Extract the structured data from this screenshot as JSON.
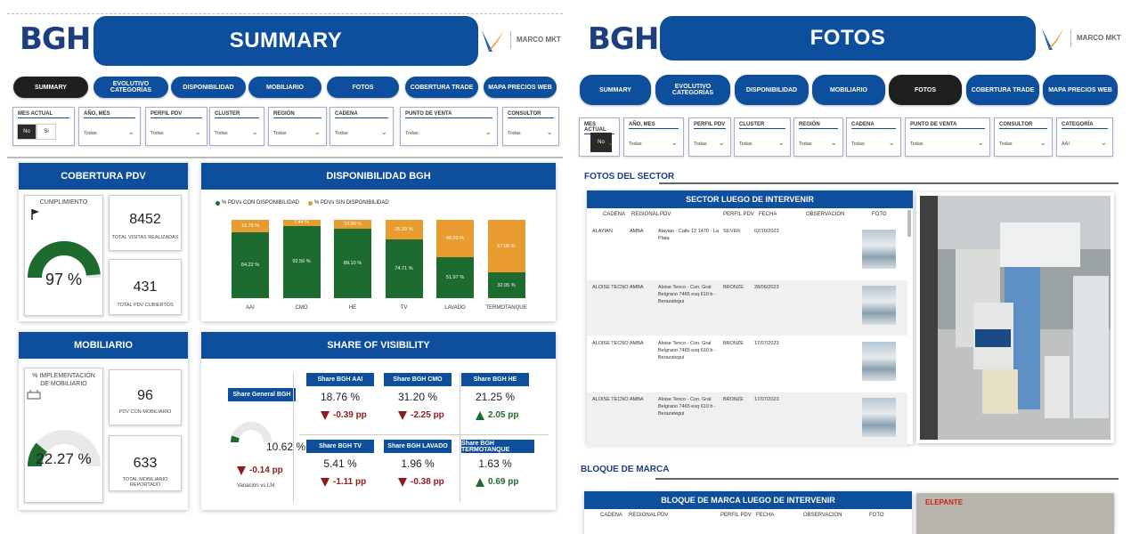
{
  "brand": {
    "logo": "BGH",
    "partner": "MARCO MKT",
    "accent": "#0d4f9c",
    "green": "#1d6b2f",
    "orange": "#e89c2f",
    "red": "#8b1c1c"
  },
  "summary": {
    "title": "SUMMARY",
    "nav": [
      "SUMMARY",
      "EVOLUTIVO CATEGORÍAS",
      "DISPONIBILIDAD",
      "MOBILIARIO",
      "FOTOS",
      "COBERTURA TRADE",
      "MAPA PRECIOS WEB"
    ],
    "active_tab": "SUMMARY",
    "filters": [
      {
        "label": "MES ACTUAL",
        "options": [
          "No",
          "Si"
        ],
        "selected": "No"
      },
      {
        "label": "AÑO, MES",
        "value": "Todas"
      },
      {
        "label": "PERFIL PDV",
        "value": "Todas"
      },
      {
        "label": "CLUSTER",
        "value": "Todas"
      },
      {
        "label": "REGIÓN",
        "value": "Todas"
      },
      {
        "label": "CADENA",
        "value": "Todas"
      },
      {
        "label": "PUNTO DE VENTA",
        "value": "Todas"
      },
      {
        "label": "CONSULTOR",
        "value": "Todas"
      }
    ],
    "cobertura": {
      "title": "COBERTURA PDV",
      "cumplimiento_label": "CUMPLIMIENTO",
      "cumplimiento_value": "97 %",
      "cumplimiento_pct": 0.97,
      "visitas_value": "8452",
      "visitas_label": "TOTAL VISITAS REALIZADAS",
      "cubiertos_value": "431",
      "cubiertos_label": "TOTAL PDV CUBIERTOS"
    },
    "mobiliario": {
      "title": "MOBILIARIO",
      "impl_label": "% IMPLEMENTACIÓN DE MOBILIARIO",
      "impl_value": "22.27 %",
      "impl_pct": 0.2227,
      "con_value": "96",
      "con_label": "PDV CON MOBILIARIO",
      "rep_value": "633",
      "rep_label": "TOTAL MOBILIARIO REPORTADO"
    },
    "disponibilidad": {
      "title": "DISPONIBILIDAD BGH",
      "legend_con": "% PDVs CON DISPONIBILIDAD",
      "legend_sin": "% PDVs SIN DISPONIBILIDAD"
    },
    "sov": {
      "title": "SHARE OF VISIBILITY",
      "general": {
        "label": "Share General BGH",
        "value": "10.62 %",
        "pct": 0.1062,
        "delta": "-0.14 pp",
        "note": "Variación vs LM"
      },
      "items": [
        {
          "label": "Share BGH AAI",
          "value": "18.76 %",
          "delta": "-0.39 pp",
          "dir": "down"
        },
        {
          "label": "Share BGH CMO",
          "value": "31.20 %",
          "delta": "-2.25 pp",
          "dir": "down"
        },
        {
          "label": "Share BGH HE",
          "value": "21.25 %",
          "delta": "2.05 pp",
          "dir": "up"
        },
        {
          "label": "Share BGH TV",
          "value": "5.41 %",
          "delta": "-1.11 pp",
          "dir": "down"
        },
        {
          "label": "Share BGH LAVADO",
          "value": "1.96 %",
          "delta": "-0.38 pp",
          "dir": "down"
        },
        {
          "label": "Share BGH TERMOTANQUE",
          "value": "1.63 %",
          "delta": "0.69 pp",
          "dir": "up"
        }
      ]
    }
  },
  "chart_data": {
    "type": "bar",
    "title": "DISPONIBILIDAD BGH",
    "categories": [
      "AAI",
      "CMO",
      "HE",
      "TV",
      "LAVADO",
      "TERMOTANQUE"
    ],
    "series": [
      {
        "name": "% PDVs CON DISPONIBILIDAD",
        "values": [
          84.22,
          92.56,
          89.1,
          74.71,
          51.97,
          32.95
        ],
        "labels": [
          "84.22 %",
          "92.56 %",
          "89.10 %",
          "74.71 %",
          "51.97 %",
          "32.95 %"
        ]
      },
      {
        "name": "% PDVs SIN DISPONIBILIDAD",
        "values": [
          15.78,
          7.44,
          10.9,
          25.29,
          48.03,
          67.05
        ],
        "labels": [
          "15.78 %",
          "7.44 %",
          "10.90 %",
          "25.29 %",
          "48.03 %",
          "67.05 %"
        ]
      }
    ],
    "stacked": true,
    "ylim": [
      0,
      100
    ],
    "legend": "top-left",
    "grid": false
  },
  "fotos": {
    "title": "FOTOS",
    "nav": [
      "SUMMARY",
      "EVOLUTIVO CATEGORÍAS",
      "DISPONIBILIDAD",
      "MOBILIARIO",
      "FOTOS",
      "COBERTURA TRADE",
      "MAPA PRECIOS WEB"
    ],
    "active_tab": "FOTOS",
    "filters": [
      {
        "label": "MES ACTUAL",
        "value": "No"
      },
      {
        "label": "AÑO, MES",
        "value": "Todas"
      },
      {
        "label": "PERFIL PDV",
        "value": "Todas"
      },
      {
        "label": "CLUSTER",
        "value": "Todas"
      },
      {
        "label": "REGIÓN",
        "value": "Todas"
      },
      {
        "label": "CADENA",
        "value": "Todas"
      },
      {
        "label": "PUNTO DE VENTA",
        "value": "Todas"
      },
      {
        "label": "CONSULTOR",
        "value": "Todas"
      },
      {
        "label": "CATEGORÍA",
        "value": "AAI"
      }
    ],
    "section1": "FOTOS DEL SECTOR",
    "table1": {
      "title": "SECTOR LUEGO DE INTERVENIR",
      "headers": [
        "CADENA",
        "REGIONAL",
        "PDV",
        "PERFIL PDV",
        "FECHA",
        "OBSERVACION",
        "FOTO"
      ],
      "rows": [
        [
          "ALAYIAN",
          "AMBA",
          "Alayian - Calle 12 1470 - La Plata",
          "SILVER",
          "02/10/2023",
          ""
        ],
        [
          "ALOISE TECNO",
          "AMBA",
          "Aloise Tenco - Con. Gral Belgrano 7465 esq 610 b - Berazategui",
          "BRONZE",
          "28/06/2023",
          ""
        ],
        [
          "ALOISE TECNO",
          "AMBA",
          "Aloise Tenco - Con. Gral Belgrano 7465 esq 610 b - Berazategui",
          "BRONZE",
          "17/07/2023",
          ""
        ],
        [
          "ALOISE TECNO",
          "AMBA",
          "Aloise Tenco - Con. Gral Belgrano 7465 esq 610 b - Berazategui",
          "BRONZE",
          "17/07/2023",
          ""
        ]
      ]
    },
    "section2": "BLOQUE DE MARCA",
    "table2": {
      "title": "BLOQUE DE MARCA LUEGO DE INTERVENIR",
      "headers": [
        "CADENA",
        "REGIONAL",
        "PDV",
        "PERFIL PDV",
        "FECHA",
        "OBSERVACION",
        "FOTO"
      ]
    },
    "photo_sign": "ELEPANTE"
  }
}
